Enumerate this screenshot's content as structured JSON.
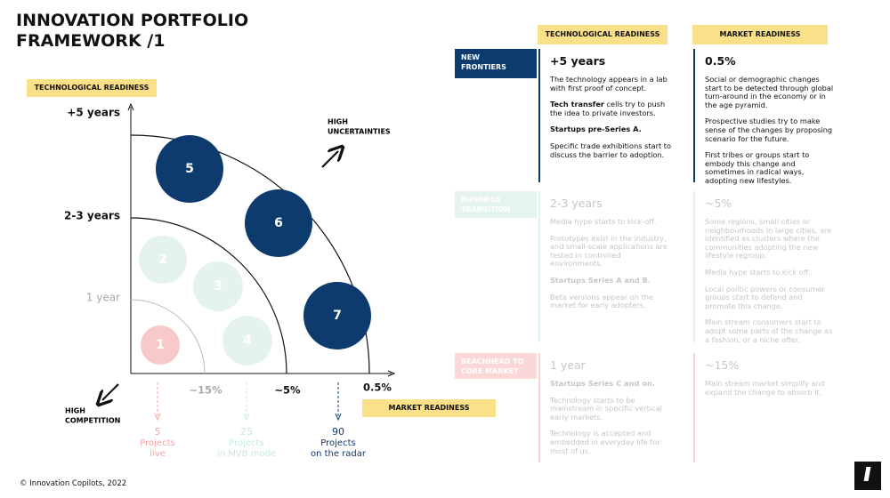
{
  "header": {
    "title_lines": [
      "INNOVATION PORTFOLIO",
      "FRAMEWORK /1"
    ]
  },
  "diagram": {
    "y_axis_label": "TECHNOLOGICAL READINESS",
    "y_levels": [
      "+5 years",
      "2-3 years",
      "1 year"
    ],
    "x_axis_label": "MARKET READINESS",
    "x_levels": [
      "~15%",
      "~5%",
      "0.5%"
    ],
    "uncertainty_label": [
      "HIGH",
      "UNCERTAINTIES"
    ],
    "competition_label": [
      "HIGH",
      "COMPETITION"
    ],
    "bubbles": [
      "5",
      "6",
      "7",
      "2",
      "3",
      "4",
      "1"
    ],
    "funnels": [
      {
        "count": "5",
        "lines": [
          "Projects",
          "live"
        ]
      },
      {
        "count": "25",
        "lines": [
          "Projects",
          "in MVB mode"
        ]
      },
      {
        "count": "90",
        "lines": [
          "Projects",
          "on the radar"
        ]
      }
    ]
  },
  "table": {
    "headers": [
      "TECHNOLOGICAL READINESS",
      "MARKET READINESS"
    ],
    "rows": [
      {
        "label_lines": [
          "NEW",
          "FRONTIERS"
        ],
        "tech": {
          "level": "+5 years",
          "paragraphs": [
            {
              "text": "The technology appears in a lab with first proof of concept."
            },
            {
              "bold": "Tech transfer",
              "text": " cells try to push the idea to private investors."
            },
            {
              "bold": "Startups pre-Series A."
            },
            {
              "text": "Specific trade exhibitions start to discuss the barrier to adoption."
            }
          ]
        },
        "market": {
          "level": "0.5%",
          "paragraphs": [
            {
              "text": "Social or demographic changes start to be detected through global turn-around in the economy or in the age pyramid."
            },
            {
              "text": "Prospective studies try to make sense of the changes by proposing scenario for the future."
            },
            {
              "text": "First tribes or groups start to embody this change and sometimes in radical ways, adopting new lifestyles."
            }
          ]
        }
      },
      {
        "label_lines": [
          "BUSINESS",
          "TRANSITION"
        ],
        "tech": {
          "level": "2-3 years",
          "paragraphs": [
            {
              "text": "Media hype starts to kick-off."
            },
            {
              "text": "Prototypes exist in the industry, and small-scale applications are tested in controlled environments."
            },
            {
              "bold": "Startups Series A and B."
            },
            {
              "text": "Beta versions appear on the market for early adopters."
            }
          ]
        },
        "market": {
          "level": "~5%",
          "paragraphs": [
            {
              "text": "Some regions, small cities or neighbourhoods in large cities, are identified as clusters where the communities adopting the new lifestyle regroup."
            },
            {
              "text": "Media hype starts to kick off."
            },
            {
              "text": "Local politic powers or consumer groups start to defend and promote this change."
            },
            {
              "text": "Main stream consumers start to adopt some parts of the change as a fashion, or a niche offer."
            }
          ]
        }
      },
      {
        "label_lines": [
          "BEACHHEAD TO",
          "CORE MARKET"
        ],
        "tech": {
          "level": "1 year",
          "paragraphs": [
            {
              "bold": "Startups Series C and on."
            },
            {
              "text": "Technology starts to be mainstream in specific vertical early markets."
            },
            {
              "text": "Technology is accepted and embedded in everyday life for most of us."
            }
          ]
        },
        "market": {
          "level": "~15%",
          "paragraphs": [
            {
              "text": "Main stream market simplify and expand the change to absorb it."
            }
          ]
        }
      }
    ]
  },
  "footer": {
    "copyright": "© Innovation Copilots, 2022"
  }
}
